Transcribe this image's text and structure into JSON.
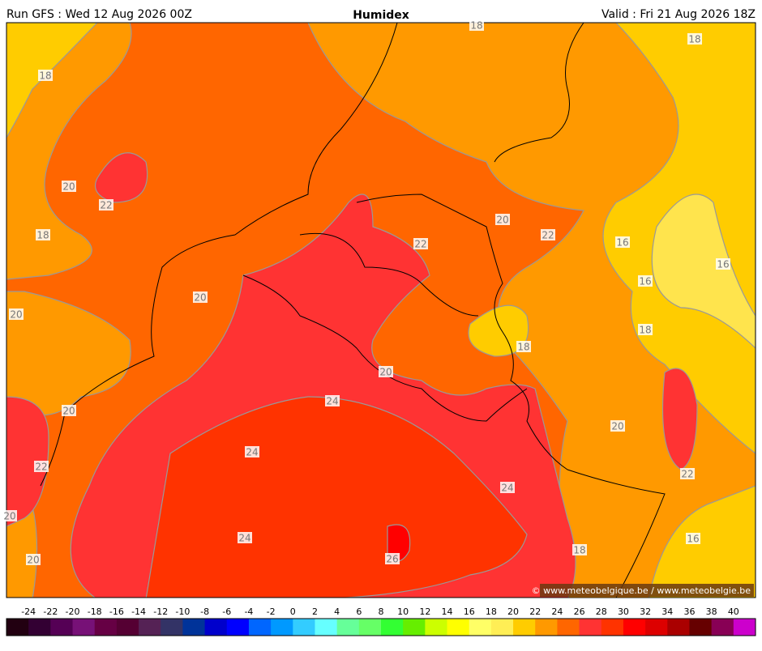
{
  "header": {
    "left": "Run GFS : Wed 12 Aug 2026 00Z",
    "title": "Humidex",
    "right": "Valid : Fri 21 Aug 2026 18Z"
  },
  "contour_labels": [
    "18",
    "18",
    "18",
    "20",
    "22",
    "18",
    "20",
    "22",
    "22",
    "16",
    "16",
    "16",
    "20",
    "20",
    "18",
    "18",
    "20",
    "24",
    "20",
    "20",
    "24",
    "22",
    "22",
    "24",
    "20",
    "24",
    "16",
    "26",
    "20",
    "18"
  ],
  "credit": "© www.meteobelgique.be / www.meteobelgie.be",
  "legend": {
    "ticks": [
      -24,
      -22,
      -20,
      -18,
      -16,
      -14,
      -12,
      -10,
      -8,
      -6,
      -4,
      -2,
      0,
      2,
      4,
      6,
      8,
      10,
      12,
      14,
      16,
      18,
      20,
      22,
      24,
      26,
      28,
      30,
      32,
      34,
      36,
      38,
      40
    ],
    "colors": [
      "#220011",
      "#330033",
      "#550055",
      "#771177",
      "#660044",
      "#550033",
      "#552255",
      "#333366",
      "#003399",
      "#0000cc",
      "#0000ff",
      "#0066ff",
      "#0099ff",
      "#33ccff",
      "#66ffff",
      "#66ff99",
      "#66ff66",
      "#33ff33",
      "#66ee00",
      "#ccff00",
      "#ffff00",
      "#ffff66",
      "#ffee55",
      "#ffcc00",
      "#ff9900",
      "#ff6600",
      "#ff3333",
      "#ff3300",
      "#ff0000",
      "#dd0000",
      "#aa0000",
      "#660000",
      "#880055",
      "#cc00cc"
    ]
  }
}
